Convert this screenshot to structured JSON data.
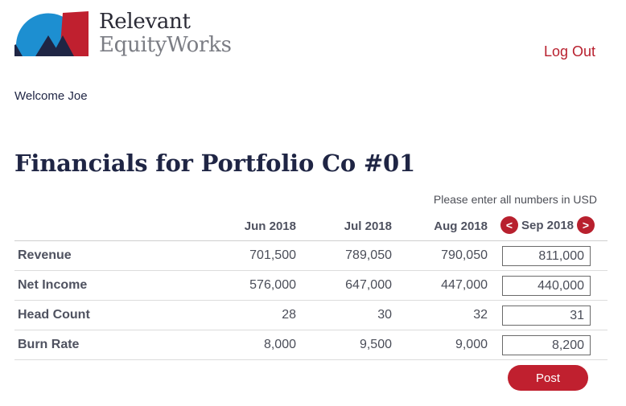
{
  "header": {
    "brand_line1": "Relevant",
    "brand_line2": "EquityWorks",
    "logout_label": "Log Out",
    "brand_colors": {
      "blue": "#1d8fd1",
      "navy": "#1f2544",
      "red": "#c0202f"
    }
  },
  "welcome_text": "Welcome Joe",
  "page_title": "Financials for Portfolio Co #01",
  "currency_note": "Please enter all numbers in USD",
  "table": {
    "months": [
      "Jun 2018",
      "Jul 2018",
      "Aug 2018"
    ],
    "edit_month": "Sep 2018",
    "prev_icon": "<",
    "next_icon": ">",
    "rows": [
      {
        "label": "Revenue",
        "values": [
          "701,500",
          "789,050",
          "790,050"
        ],
        "input": "811,000"
      },
      {
        "label": "Net Income",
        "values": [
          "576,000",
          "647,000",
          "447,000"
        ],
        "input": "440,000"
      },
      {
        "label": "Head Count",
        "values": [
          "28",
          "30",
          "32"
        ],
        "input": "31"
      },
      {
        "label": "Burn Rate",
        "values": [
          "8,000",
          "9,500",
          "9,000"
        ],
        "input": "8,200"
      }
    ]
  },
  "post_label": "Post"
}
